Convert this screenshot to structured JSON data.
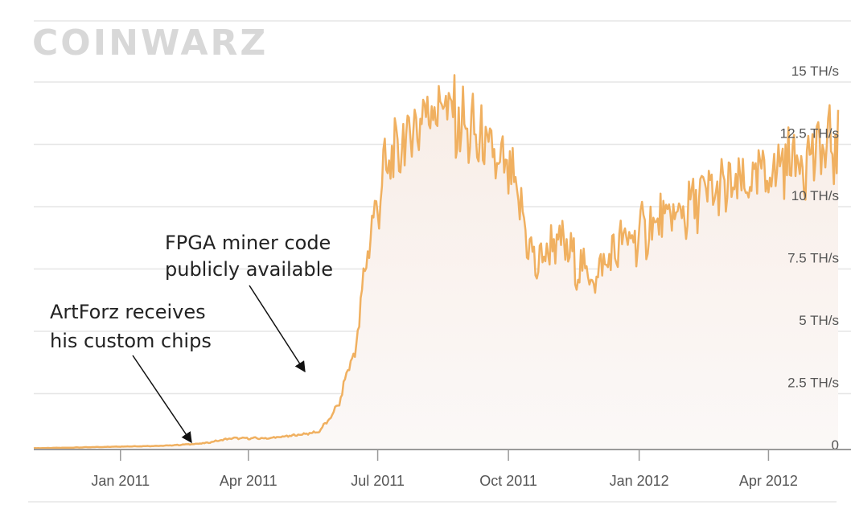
{
  "logo_text": "COINWARZ",
  "colors": {
    "line": "#f0b060",
    "area": "#f6eeea",
    "grid": "#e6e6e6",
    "axis": "#9a9a9a"
  },
  "chart_data": {
    "type": "area",
    "xlabel": "",
    "ylabel": "",
    "ylim": [
      0,
      16.5
    ],
    "y_unit": "TH/s",
    "grid": true,
    "y_ticks": [
      {
        "value": 0,
        "label": "0"
      },
      {
        "value": 2.5,
        "label": "2.5 TH/s"
      },
      {
        "value": 5,
        "label": "5 TH/s"
      },
      {
        "value": 7.5,
        "label": "7.5 TH/s"
      },
      {
        "value": 10,
        "label": "10 TH/s"
      },
      {
        "value": 12.5,
        "label": "12.5 TH/s"
      },
      {
        "value": 15,
        "label": "15 TH/s"
      }
    ],
    "x_range": [
      "2010-11-01",
      "2012-05-20"
    ],
    "x_ticks": [
      {
        "date": "2011-01-01",
        "label": "Jan 2011"
      },
      {
        "date": "2011-04-01",
        "label": "Apr 2011"
      },
      {
        "date": "2011-07-01",
        "label": "Jul 2011"
      },
      {
        "date": "2011-10-01",
        "label": "Oct 2011"
      },
      {
        "date": "2012-01-01",
        "label": "Jan 2012"
      },
      {
        "date": "2012-04-01",
        "label": "Apr 2012"
      }
    ],
    "series": [
      {
        "x": [
          "2010-11-01",
          "2010-12-01",
          "2011-01-01",
          "2011-02-01",
          "2011-03-01",
          "2011-03-20",
          "2011-04-15",
          "2011-05-01",
          "2011-05-20",
          "2011-05-28",
          "2011-06-05",
          "2011-06-10",
          "2011-06-15",
          "2011-06-20",
          "2011-06-25",
          "2011-07-01",
          "2011-07-05",
          "2011-07-15",
          "2011-07-25",
          "2011-08-05",
          "2011-08-15",
          "2011-08-25",
          "2011-09-05",
          "2011-09-15",
          "2011-09-25",
          "2011-10-01",
          "2011-10-10",
          "2011-10-20",
          "2011-11-01",
          "2011-11-10",
          "2011-11-20",
          "2011-12-01",
          "2011-12-10",
          "2011-12-20",
          "2012-01-01",
          "2012-01-10",
          "2012-01-20",
          "2012-02-01",
          "2012-02-15",
          "2012-03-01",
          "2012-03-15",
          "2012-04-01",
          "2012-04-15",
          "2012-05-01",
          "2012-05-15"
        ],
        "y": [
          0.05,
          0.08,
          0.12,
          0.15,
          0.25,
          0.45,
          0.45,
          0.55,
          0.7,
          1.2,
          2.0,
          3.3,
          3.8,
          6.2,
          8.5,
          9.8,
          11.0,
          11.9,
          12.8,
          13.7,
          14.0,
          13.2,
          12.6,
          12.1,
          11.2,
          11.1,
          9.5,
          7.3,
          8.3,
          8.1,
          7.3,
          6.9,
          7.6,
          8.3,
          8.6,
          9.0,
          9.2,
          9.5,
          10.2,
          10.4,
          10.5,
          11.1,
          11.7,
          11.8,
          12.1
        ]
      }
    ],
    "annotations": [
      {
        "lines": [
          "FPGA miner code",
          "publicly available"
        ],
        "date": "2011-05-30"
      },
      {
        "lines": [
          "ArtForz receives",
          "his custom chips"
        ],
        "date": "2011-03-01"
      }
    ]
  }
}
